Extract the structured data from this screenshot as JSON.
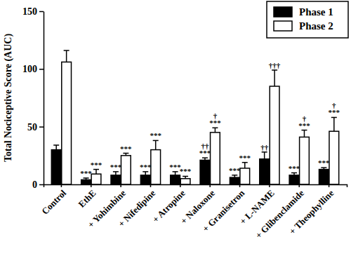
{
  "chart_data": {
    "type": "bar",
    "y_label": "Total Nociceptive Score (AUC)",
    "categories": [
      "Control",
      "EthE",
      "+ Yohimbine",
      "+ Nifedipine",
      "+ Atropine",
      "+ Naloxone",
      "+ Granisetron",
      "+ L-NAME",
      "+ Glibenclamide",
      "+ Theophylline"
    ],
    "series": [
      {
        "name": "Phase 1",
        "color": "#000000",
        "values": [
          30,
          4,
          8,
          8,
          8,
          21,
          6,
          22,
          8,
          13
        ],
        "errors": [
          4,
          1.5,
          3,
          3,
          3,
          2,
          2,
          6,
          2,
          1.5
        ],
        "significance": [
          null,
          [
            "***"
          ],
          [
            "***"
          ],
          [
            "***"
          ],
          [
            "***"
          ],
          [
            "††",
            "***"
          ],
          [
            "***"
          ],
          [
            "††"
          ],
          [
            "***"
          ],
          [
            "***"
          ]
        ]
      },
      {
        "name": "Phase 2",
        "color": "#ffffff",
        "values": [
          106,
          9,
          25,
          30,
          5,
          45,
          14,
          85,
          41,
          46
        ],
        "errors": [
          10,
          4,
          2,
          8,
          2,
          4,
          5,
          14,
          6,
          12
        ],
        "significance": [
          null,
          [
            "***"
          ],
          [
            "***"
          ],
          [
            "***"
          ],
          [
            "***"
          ],
          [
            "†",
            "***"
          ],
          [
            "***"
          ],
          [
            "†††"
          ],
          [
            "†",
            "***"
          ],
          [
            "†",
            "***"
          ]
        ]
      }
    ],
    "ylim": [
      0,
      150
    ],
    "yticks": [
      0,
      50,
      100,
      150
    ],
    "legend": "top-right",
    "grid": false
  }
}
